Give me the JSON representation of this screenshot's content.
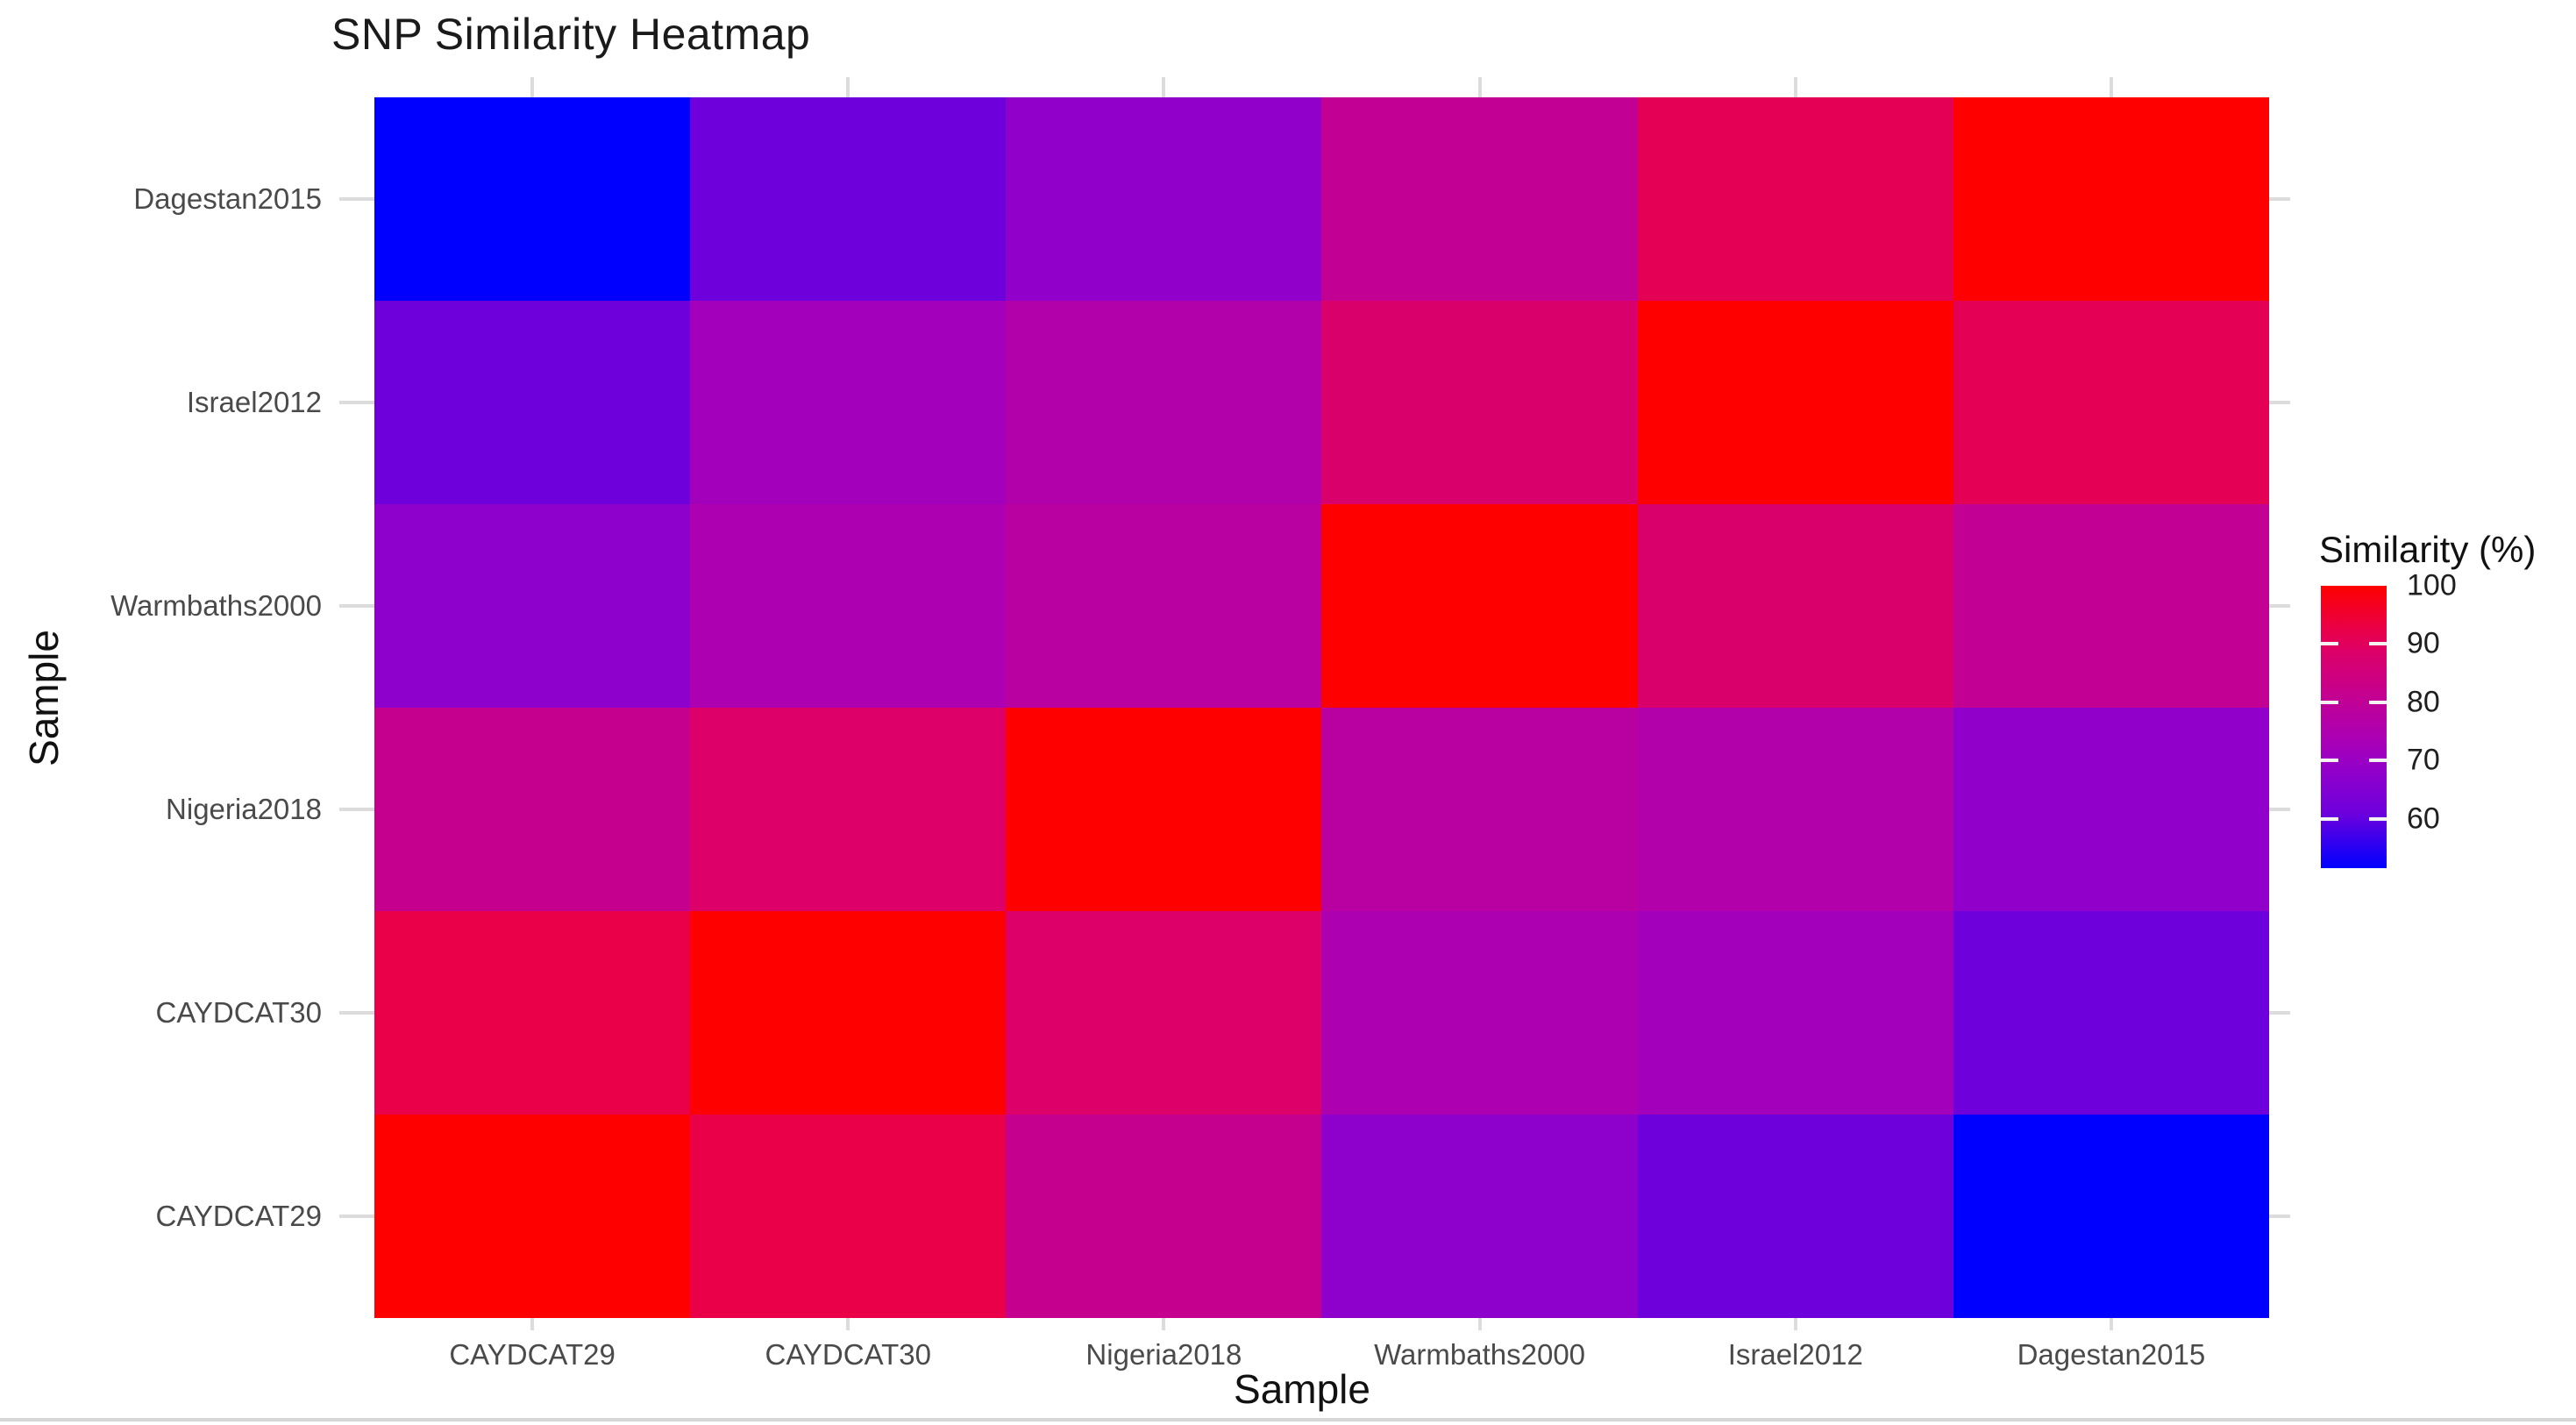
{
  "title": "SNP Similarity Heatmap",
  "x_axis": {
    "label": "Sample",
    "categories": [
      "CAYDCAT29",
      "CAYDCAT30",
      "Nigeria2018",
      "Warmbaths2000",
      "Israel2012",
      "Dagestan2015"
    ]
  },
  "y_axis": {
    "label": "Sample",
    "categories_top_to_bottom": [
      "Dagestan2015",
      "Israel2012",
      "Warmbaths2000",
      "Nigeria2018",
      "CAYDCAT30",
      "CAYDCAT29"
    ]
  },
  "legend": {
    "title": "Similarity (%)",
    "tick_values": [
      100,
      90,
      80,
      70,
      60
    ],
    "domain": [
      51.5,
      100
    ],
    "low_color": "#0000FF",
    "high_color": "#FF0000"
  },
  "chart_data": {
    "type": "heatmap",
    "x": [
      "CAYDCAT29",
      "CAYDCAT30",
      "Nigeria2018",
      "Warmbaths2000",
      "Israel2012",
      "Dagestan2015"
    ],
    "y_top_to_bottom": [
      "Dagestan2015",
      "Israel2012",
      "Warmbaths2000",
      "Nigeria2018",
      "CAYDCAT30",
      "CAYDCAT29"
    ],
    "values_rows_top_to_bottom": [
      [
        51.5,
        61,
        68,
        80.5,
        91,
        100
      ],
      [
        61,
        72,
        76,
        88,
        100,
        91
      ],
      [
        67.5,
        74.5,
        78,
        100,
        88,
        80.5
      ],
      [
        81.5,
        88.5,
        100,
        78,
        76,
        68
      ],
      [
        92.5,
        100,
        88.5,
        74.5,
        72,
        61
      ],
      [
        100,
        92.5,
        81.5,
        67.5,
        61,
        51.5
      ]
    ],
    "value_domain": [
      51.5,
      100
    ],
    "colorscale_stops": [
      [
        51.5,
        "#0000FF"
      ],
      [
        61,
        "#6E00DC"
      ],
      [
        68,
        "#9000CA"
      ],
      [
        73,
        "#A800B8"
      ],
      [
        78,
        "#B900A0"
      ],
      [
        81.5,
        "#C5008E"
      ],
      [
        88,
        "#DA006C"
      ],
      [
        92.5,
        "#E90048"
      ],
      [
        100,
        "#FF0000"
      ]
    ],
    "grid": false,
    "legend_position": "right"
  }
}
